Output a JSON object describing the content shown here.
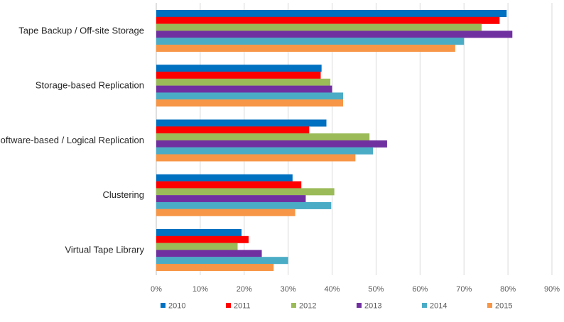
{
  "chart_data": {
    "type": "bar",
    "orientation": "horizontal",
    "categories": [
      "Tape Backup / Off-site Storage",
      "Storage-based Replication",
      "Software-based / Logical Replication",
      "Clustering",
      "Virtual Tape Library"
    ],
    "series": [
      {
        "name": "2010",
        "color": "#0070C0",
        "values": [
          79.7,
          37.6,
          38.7,
          31.0,
          19.4
        ]
      },
      {
        "name": "2011",
        "color": "#FF0000",
        "values": [
          78.1,
          37.4,
          34.8,
          33.0,
          21.0
        ]
      },
      {
        "name": "2012",
        "color": "#9BBB59",
        "values": [
          74.0,
          39.6,
          48.5,
          40.5,
          18.5
        ]
      },
      {
        "name": "2013",
        "color": "#7030A0",
        "values": [
          81.0,
          40.0,
          52.5,
          34.0,
          24.0
        ]
      },
      {
        "name": "2014",
        "color": "#4BACC6",
        "values": [
          70.0,
          42.5,
          49.3,
          39.8,
          30.0
        ]
      },
      {
        "name": "2015",
        "color": "#F79646",
        "values": [
          68.0,
          42.5,
          45.3,
          31.6,
          26.7
        ]
      }
    ],
    "xticks": [
      "0%",
      "10%",
      "20%",
      "30%",
      "40%",
      "50%",
      "60%",
      "70%",
      "80%",
      "90%"
    ],
    "xlim": [
      0,
      90
    ],
    "grid": true,
    "legend_position": "bottom",
    "title": "",
    "xlabel": "",
    "ylabel": ""
  }
}
